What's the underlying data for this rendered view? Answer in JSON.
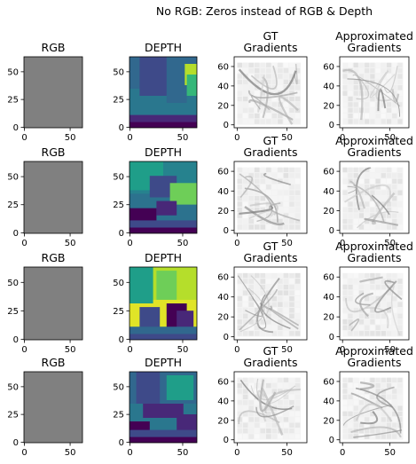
{
  "figure": {
    "suptitle": "No RGB: Zeros instead of RGB & Depth"
  },
  "chart_data": {
    "type": "heatmap",
    "title": "No RGB: Zeros instead of RGB & Depth",
    "grid": false,
    "legend": "none",
    "columns": [
      {
        "id": "rgb",
        "title": [
          "RGB"
        ],
        "colormap": "gray-uniform"
      },
      {
        "id": "depth",
        "title": [
          "DEPTH"
        ],
        "colormap": "viridis"
      },
      {
        "id": "gt",
        "title": [
          "GT",
          "Gradients"
        ],
        "colormap": "gray"
      },
      {
        "id": "approx",
        "title": [
          "Approximated",
          "Gradients"
        ],
        "colormap": "gray"
      }
    ],
    "rows": 4,
    "image_size": [
      64,
      64
    ],
    "rgb_panels": {
      "xticks": [
        0,
        50
      ],
      "yticks": [
        0,
        25,
        50
      ],
      "xlim": [
        -0.5,
        63.5
      ],
      "ylim": [
        63.5,
        -0.5
      ],
      "fill_color": "#808080"
    },
    "depth_panels": {
      "xticks": [
        0,
        50
      ],
      "yticks": [
        0,
        25,
        50
      ],
      "xlim": [
        -0.5,
        63.5
      ],
      "ylim": [
        63.5,
        -0.5
      ]
    },
    "gradient_panels": {
      "xticks": [
        0,
        50
      ],
      "yticks": [
        0,
        20,
        40,
        60
      ],
      "xlim": [
        -3,
        70
      ],
      "ylim": [
        -3,
        70
      ]
    }
  }
}
